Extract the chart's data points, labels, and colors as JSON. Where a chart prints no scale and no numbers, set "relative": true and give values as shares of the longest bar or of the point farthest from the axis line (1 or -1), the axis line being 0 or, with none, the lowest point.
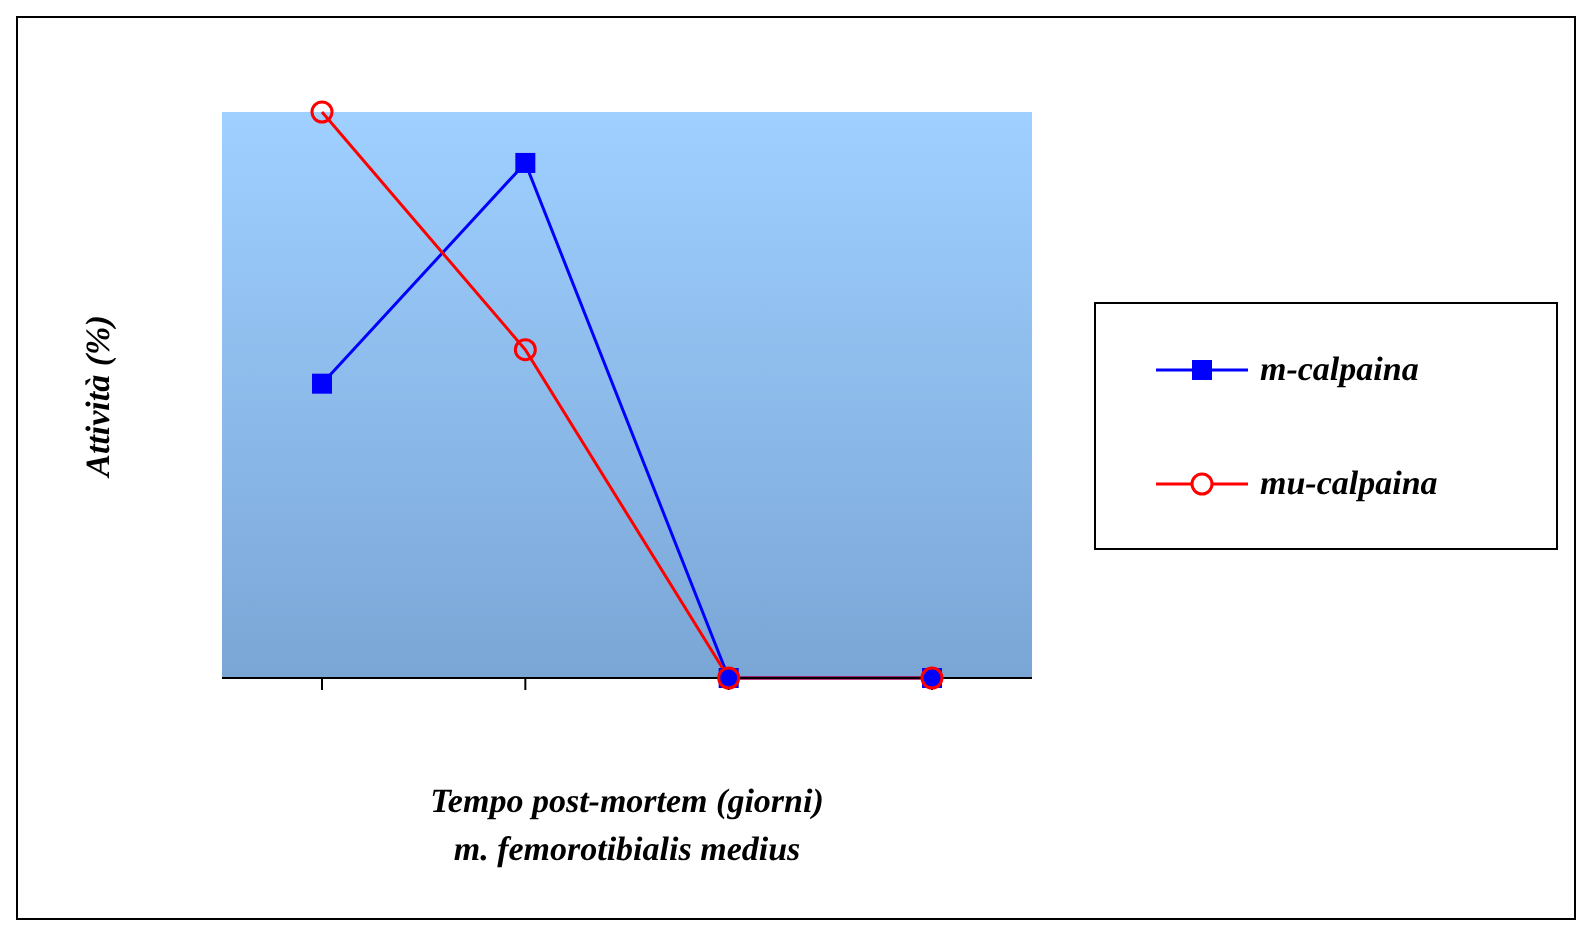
{
  "chart_data": {
    "type": "line",
    "relative": true,
    "categories": [
      null,
      null,
      null,
      null
    ],
    "ylabel": "Attività (%)",
    "xlabel": "Tempo post-mortem (giorni)\nm. femorotibialis medius",
    "series": [
      {
        "name": "m-calpaina",
        "color": "#0000ff",
        "marker": "square",
        "values": [
          0.52,
          0.91,
          0,
          0
        ]
      },
      {
        "name": "mu-calpaina",
        "color": "#ff0000",
        "marker": "circle",
        "values": [
          1,
          0.58,
          0,
          0
        ]
      }
    ],
    "legend": "right",
    "grid": false,
    "line_style": "solid"
  }
}
